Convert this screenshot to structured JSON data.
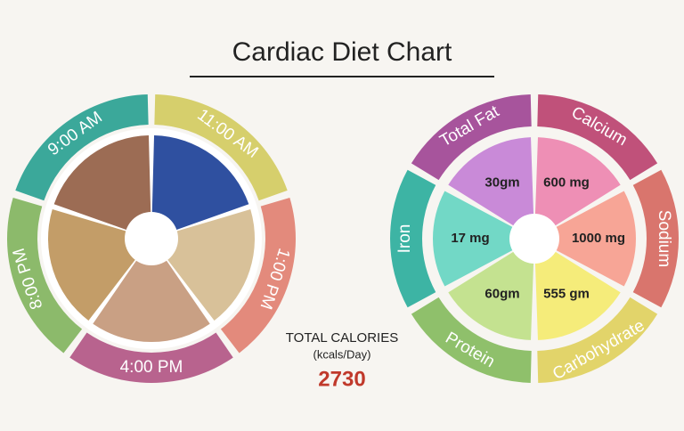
{
  "title": "Cardiac Diet Chart",
  "meals": [
    {
      "time": "11:00 AM",
      "color": "#d6cf6c"
    },
    {
      "time": "1:00 PM",
      "color": "#e38a7c"
    },
    {
      "time": "4:00 PM",
      "color": "#b8638e"
    },
    {
      "time": "8:00 PM",
      "color": "#8cba6b"
    },
    {
      "time": "9:00 AM",
      "color": "#3ba89a"
    }
  ],
  "nutrients": [
    {
      "name": "Calcium",
      "amount": "600 mg",
      "color": "#c0517a",
      "fill": "#ee8fb5"
    },
    {
      "name": "Sodium",
      "amount": "1000 mg",
      "color": "#d9756d",
      "fill": "#f7a596"
    },
    {
      "name": "Carbohydrate",
      "amount": "555 gm",
      "color": "#e2d46a",
      "fill": "#f5ec7a"
    },
    {
      "name": "Protein",
      "amount": "60gm",
      "color": "#8fc06b",
      "fill": "#c4e290"
    },
    {
      "name": "Iron",
      "amount": "17 mg",
      "color": "#3db4a4",
      "fill": "#72d8c6"
    },
    {
      "name": "Total Fat",
      "amount": "30gm",
      "color": "#a7549c",
      "fill": "#c98ad8"
    }
  ],
  "total": {
    "label": "TOTAL CALORIES",
    "unit": "(kcals/Day)",
    "value": 2730
  }
}
